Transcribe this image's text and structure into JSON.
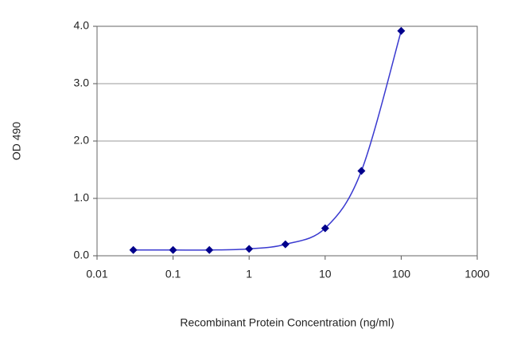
{
  "chart_data": {
    "type": "scatter",
    "x_label": "Recombinant Protein Concentration (ng/ml)",
    "y_label": "OD 490",
    "x": [
      0.03,
      0.1,
      0.3,
      1,
      3,
      10,
      30,
      100
    ],
    "values": [
      0.1,
      0.1,
      0.1,
      0.12,
      0.2,
      0.48,
      1.48,
      3.92
    ],
    "color": "#00008b",
    "line_color": "#3a3ad0",
    "x_log": true,
    "xlim": [
      0.01,
      1000
    ],
    "xticks": [
      0.01,
      0.1,
      1,
      10,
      100,
      1000
    ],
    "ylim": [
      0,
      4
    ],
    "yticks": [
      {
        "value": 0,
        "label": "0.0"
      },
      {
        "value": 1,
        "label": "1.0"
      },
      {
        "value": 2,
        "label": "2.0"
      },
      {
        "value": 3,
        "label": "3.0"
      },
      {
        "value": 4,
        "label": "4.0"
      }
    ],
    "grid": true
  }
}
